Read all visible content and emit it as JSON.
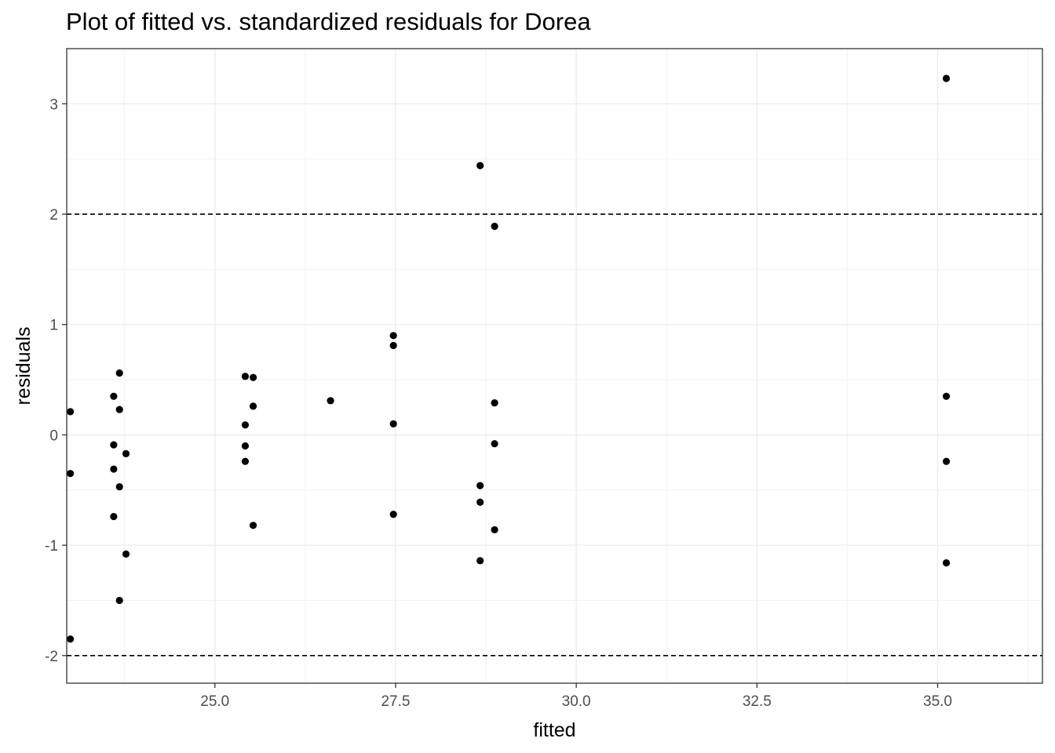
{
  "chart_data": {
    "type": "scatter",
    "title": "Plot of fitted vs. standardized residuals for Dorea",
    "xlabel": "fitted",
    "ylabel": "residuals",
    "xlim": [
      22.95,
      36.45
    ],
    "ylim": [
      -2.25,
      3.5
    ],
    "x_ticks": [
      25.0,
      27.5,
      30.0,
      32.5,
      35.0
    ],
    "x_tick_labels": [
      "25.0",
      "27.5",
      "30.0",
      "32.5",
      "35.0"
    ],
    "y_ticks": [
      -2,
      -1,
      0,
      1,
      2,
      3
    ],
    "y_tick_labels": [
      "-2",
      "-1",
      "0",
      "1",
      "2",
      "3"
    ],
    "reference_lines": [
      2,
      -2
    ],
    "grid": true,
    "points": [
      {
        "x": 23.0,
        "y": 0.21
      },
      {
        "x": 23.0,
        "y": -0.35
      },
      {
        "x": 23.0,
        "y": -1.85
      },
      {
        "x": 23.6,
        "y": 0.35
      },
      {
        "x": 23.6,
        "y": -0.09
      },
      {
        "x": 23.6,
        "y": -0.31
      },
      {
        "x": 23.6,
        "y": -0.74
      },
      {
        "x": 23.68,
        "y": 0.56
      },
      {
        "x": 23.68,
        "y": 0.23
      },
      {
        "x": 23.68,
        "y": -0.47
      },
      {
        "x": 23.68,
        "y": -1.5
      },
      {
        "x": 23.77,
        "y": -0.17
      },
      {
        "x": 23.77,
        "y": -1.08
      },
      {
        "x": 25.42,
        "y": 0.53
      },
      {
        "x": 25.42,
        "y": 0.09
      },
      {
        "x": 25.42,
        "y": -0.1
      },
      {
        "x": 25.42,
        "y": -0.24
      },
      {
        "x": 25.53,
        "y": 0.52
      },
      {
        "x": 25.53,
        "y": 0.26
      },
      {
        "x": 25.53,
        "y": -0.82
      },
      {
        "x": 26.6,
        "y": 0.31
      },
      {
        "x": 27.47,
        "y": 0.9
      },
      {
        "x": 27.47,
        "y": 0.81
      },
      {
        "x": 27.47,
        "y": 0.1
      },
      {
        "x": 27.47,
        "y": -0.72
      },
      {
        "x": 28.67,
        "y": 2.44
      },
      {
        "x": 28.67,
        "y": -0.46
      },
      {
        "x": 28.67,
        "y": -0.61
      },
      {
        "x": 28.67,
        "y": -1.14
      },
      {
        "x": 28.87,
        "y": 1.89
      },
      {
        "x": 28.87,
        "y": 0.29
      },
      {
        "x": 28.87,
        "y": -0.08
      },
      {
        "x": 28.87,
        "y": -0.86
      },
      {
        "x": 35.12,
        "y": 3.23
      },
      {
        "x": 35.12,
        "y": 0.35
      },
      {
        "x": 35.12,
        "y": -0.24
      },
      {
        "x": 35.12,
        "y": -1.16
      }
    ]
  }
}
